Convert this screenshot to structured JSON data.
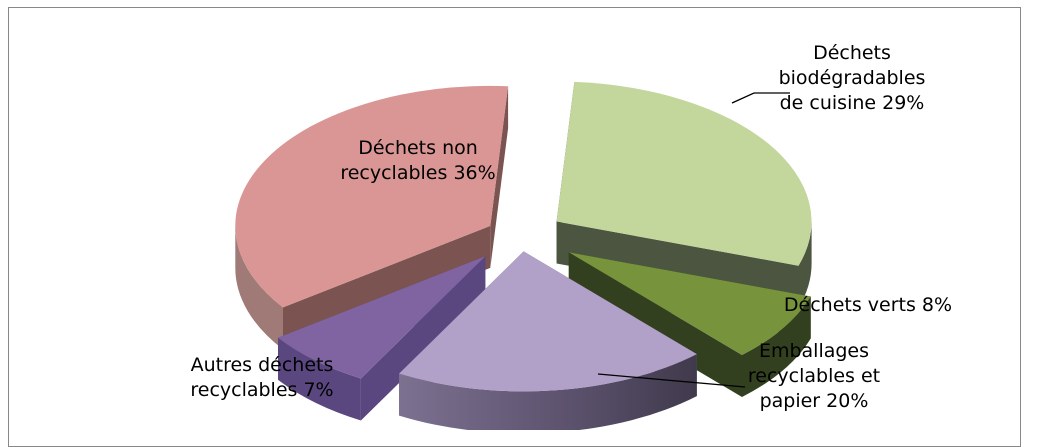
{
  "chart_data": {
    "type": "pie",
    "style": "3d-exploded",
    "title": "",
    "unit": "%",
    "slices": [
      {
        "label_lines": [
          "Déchets",
          "biodégradables",
          "de cuisine 29%"
        ],
        "value": 29,
        "color": "#c3d69b"
      },
      {
        "label_lines": [
          "Déchets verts 8%"
        ],
        "value": 8,
        "color": "#77933c"
      },
      {
        "label_lines": [
          "Emballages",
          "recyclables et",
          "papier  20%"
        ],
        "value": 20,
        "color": "#b1a0c7"
      },
      {
        "label_lines": [
          "Autres déchets",
          "recyclables  7%"
        ],
        "value": 7,
        "color": "#8064a2"
      },
      {
        "label_lines": [
          "Déchets non",
          "recyclables 36%"
        ],
        "value": 36,
        "color": "#d99694"
      }
    ]
  }
}
